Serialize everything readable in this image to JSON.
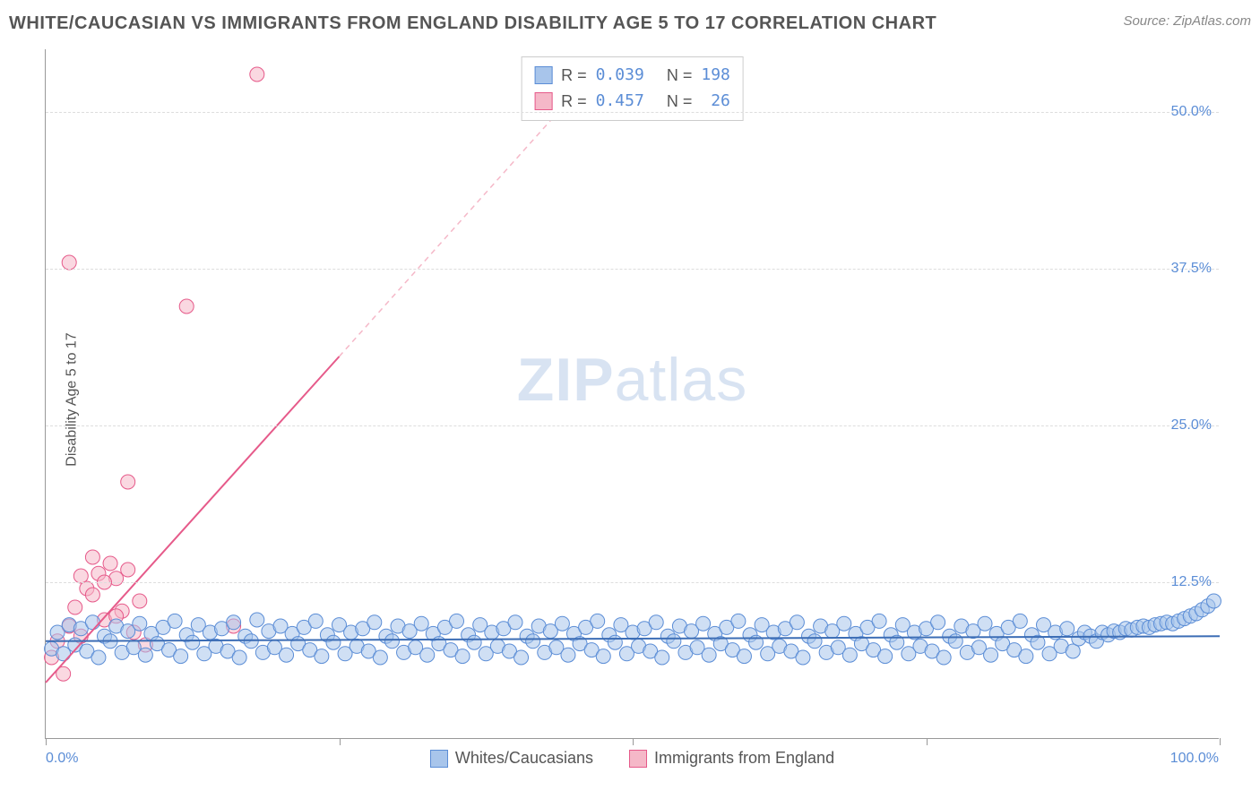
{
  "title": "WHITE/CAUCASIAN VS IMMIGRANTS FROM ENGLAND DISABILITY AGE 5 TO 17 CORRELATION CHART",
  "source": "Source: ZipAtlas.com",
  "ylabel": "Disability Age 5 to 17",
  "watermark": {
    "bold": "ZIP",
    "light": "atlas"
  },
  "chart": {
    "type": "scatter",
    "xlim": [
      0,
      100
    ],
    "ylim": [
      0,
      55
    ],
    "ytick_positions": [
      12.5,
      25.0,
      37.5,
      50.0
    ],
    "ytick_labels": [
      "12.5%",
      "25.0%",
      "37.5%",
      "50.0%"
    ],
    "xtick_positions": [
      0,
      25,
      50,
      75,
      100
    ],
    "xtick_labels_shown": {
      "0": "0.0%",
      "100": "100.0%"
    },
    "background_color": "#ffffff",
    "grid_color": "#dddddd",
    "axis_color": "#999999",
    "tick_label_color": "#5b8dd6",
    "marker_radius": 8,
    "marker_stroke_width": 1,
    "series": [
      {
        "name": "Whites/Caucasians",
        "fill": "#a8c5eb",
        "stroke": "#5b8dd6",
        "fill_opacity": 0.55,
        "R": "0.039",
        "N": "198",
        "trend": {
          "x1": 0,
          "y1": 7.8,
          "x2": 100,
          "y2": 8.2,
          "color": "#3c6db5",
          "width": 2,
          "dash": "none"
        },
        "points": [
          [
            0.5,
            7.2
          ],
          [
            1,
            8.5
          ],
          [
            1.5,
            6.8
          ],
          [
            2,
            9.1
          ],
          [
            2.5,
            7.5
          ],
          [
            3,
            8.8
          ],
          [
            3.5,
            7.0
          ],
          [
            4,
            9.3
          ],
          [
            4.5,
            6.5
          ],
          [
            5,
            8.2
          ],
          [
            5.5,
            7.8
          ],
          [
            6,
            9.0
          ],
          [
            6.5,
            6.9
          ],
          [
            7,
            8.6
          ],
          [
            7.5,
            7.3
          ],
          [
            8,
            9.2
          ],
          [
            8.5,
            6.7
          ],
          [
            9,
            8.4
          ],
          [
            9.5,
            7.6
          ],
          [
            10,
            8.9
          ],
          [
            10.5,
            7.1
          ],
          [
            11,
            9.4
          ],
          [
            11.5,
            6.6
          ],
          [
            12,
            8.3
          ],
          [
            12.5,
            7.7
          ],
          [
            13,
            9.1
          ],
          [
            13.5,
            6.8
          ],
          [
            14,
            8.5
          ],
          [
            14.5,
            7.4
          ],
          [
            15,
            8.8
          ],
          [
            15.5,
            7.0
          ],
          [
            16,
            9.3
          ],
          [
            16.5,
            6.5
          ],
          [
            17,
            8.2
          ],
          [
            17.5,
            7.8
          ],
          [
            18,
            9.5
          ],
          [
            18.5,
            6.9
          ],
          [
            19,
            8.6
          ],
          [
            19.5,
            7.3
          ],
          [
            20,
            9.0
          ],
          [
            20.5,
            6.7
          ],
          [
            21,
            8.4
          ],
          [
            21.5,
            7.6
          ],
          [
            22,
            8.9
          ],
          [
            22.5,
            7.1
          ],
          [
            23,
            9.4
          ],
          [
            23.5,
            6.6
          ],
          [
            24,
            8.3
          ],
          [
            24.5,
            7.7
          ],
          [
            25,
            9.1
          ],
          [
            25.5,
            6.8
          ],
          [
            26,
            8.5
          ],
          [
            26.5,
            7.4
          ],
          [
            27,
            8.8
          ],
          [
            27.5,
            7.0
          ],
          [
            28,
            9.3
          ],
          [
            28.5,
            6.5
          ],
          [
            29,
            8.2
          ],
          [
            29.5,
            7.8
          ],
          [
            30,
            9.0
          ],
          [
            30.5,
            6.9
          ],
          [
            31,
            8.6
          ],
          [
            31.5,
            7.3
          ],
          [
            32,
            9.2
          ],
          [
            32.5,
            6.7
          ],
          [
            33,
            8.4
          ],
          [
            33.5,
            7.6
          ],
          [
            34,
            8.9
          ],
          [
            34.5,
            7.1
          ],
          [
            35,
            9.4
          ],
          [
            35.5,
            6.6
          ],
          [
            36,
            8.3
          ],
          [
            36.5,
            7.7
          ],
          [
            37,
            9.1
          ],
          [
            37.5,
            6.8
          ],
          [
            38,
            8.5
          ],
          [
            38.5,
            7.4
          ],
          [
            39,
            8.8
          ],
          [
            39.5,
            7.0
          ],
          [
            40,
            9.3
          ],
          [
            40.5,
            6.5
          ],
          [
            41,
            8.2
          ],
          [
            41.5,
            7.8
          ],
          [
            42,
            9.0
          ],
          [
            42.5,
            6.9
          ],
          [
            43,
            8.6
          ],
          [
            43.5,
            7.3
          ],
          [
            44,
            9.2
          ],
          [
            44.5,
            6.7
          ],
          [
            45,
            8.4
          ],
          [
            45.5,
            7.6
          ],
          [
            46,
            8.9
          ],
          [
            46.5,
            7.1
          ],
          [
            47,
            9.4
          ],
          [
            47.5,
            6.6
          ],
          [
            48,
            8.3
          ],
          [
            48.5,
            7.7
          ],
          [
            49,
            9.1
          ],
          [
            49.5,
            6.8
          ],
          [
            50,
            8.5
          ],
          [
            50.5,
            7.4
          ],
          [
            51,
            8.8
          ],
          [
            51.5,
            7.0
          ],
          [
            52,
            9.3
          ],
          [
            52.5,
            6.5
          ],
          [
            53,
            8.2
          ],
          [
            53.5,
            7.8
          ],
          [
            54,
            9.0
          ],
          [
            54.5,
            6.9
          ],
          [
            55,
            8.6
          ],
          [
            55.5,
            7.3
          ],
          [
            56,
            9.2
          ],
          [
            56.5,
            6.7
          ],
          [
            57,
            8.4
          ],
          [
            57.5,
            7.6
          ],
          [
            58,
            8.9
          ],
          [
            58.5,
            7.1
          ],
          [
            59,
            9.4
          ],
          [
            59.5,
            6.6
          ],
          [
            60,
            8.3
          ],
          [
            60.5,
            7.7
          ],
          [
            61,
            9.1
          ],
          [
            61.5,
            6.8
          ],
          [
            62,
            8.5
          ],
          [
            62.5,
            7.4
          ],
          [
            63,
            8.8
          ],
          [
            63.5,
            7.0
          ],
          [
            64,
            9.3
          ],
          [
            64.5,
            6.5
          ],
          [
            65,
            8.2
          ],
          [
            65.5,
            7.8
          ],
          [
            66,
            9.0
          ],
          [
            66.5,
            6.9
          ],
          [
            67,
            8.6
          ],
          [
            67.5,
            7.3
          ],
          [
            68,
            9.2
          ],
          [
            68.5,
            6.7
          ],
          [
            69,
            8.4
          ],
          [
            69.5,
            7.6
          ],
          [
            70,
            8.9
          ],
          [
            70.5,
            7.1
          ],
          [
            71,
            9.4
          ],
          [
            71.5,
            6.6
          ],
          [
            72,
            8.3
          ],
          [
            72.5,
            7.7
          ],
          [
            73,
            9.1
          ],
          [
            73.5,
            6.8
          ],
          [
            74,
            8.5
          ],
          [
            74.5,
            7.4
          ],
          [
            75,
            8.8
          ],
          [
            75.5,
            7.0
          ],
          [
            76,
            9.3
          ],
          [
            76.5,
            6.5
          ],
          [
            77,
            8.2
          ],
          [
            77.5,
            7.8
          ],
          [
            78,
            9.0
          ],
          [
            78.5,
            6.9
          ],
          [
            79,
            8.6
          ],
          [
            79.5,
            7.3
          ],
          [
            80,
            9.2
          ],
          [
            80.5,
            6.7
          ],
          [
            81,
            8.4
          ],
          [
            81.5,
            7.6
          ],
          [
            82,
            8.9
          ],
          [
            82.5,
            7.1
          ],
          [
            83,
            9.4
          ],
          [
            83.5,
            6.6
          ],
          [
            84,
            8.3
          ],
          [
            84.5,
            7.7
          ],
          [
            85,
            9.1
          ],
          [
            85.5,
            6.8
          ],
          [
            86,
            8.5
          ],
          [
            86.5,
            7.4
          ],
          [
            87,
            8.8
          ],
          [
            87.5,
            7.0
          ],
          [
            88,
            8.0
          ],
          [
            88.5,
            8.5
          ],
          [
            89,
            8.2
          ],
          [
            89.5,
            7.8
          ],
          [
            90,
            8.5
          ],
          [
            90.5,
            8.3
          ],
          [
            91,
            8.6
          ],
          [
            91.5,
            8.5
          ],
          [
            92,
            8.8
          ],
          [
            92.5,
            8.7
          ],
          [
            93,
            8.9
          ],
          [
            93.5,
            9.0
          ],
          [
            94,
            8.9
          ],
          [
            94.5,
            9.1
          ],
          [
            95,
            9.2
          ],
          [
            95.5,
            9.3
          ],
          [
            96,
            9.2
          ],
          [
            96.5,
            9.4
          ],
          [
            97,
            9.6
          ],
          [
            97.5,
            9.8
          ],
          [
            98,
            10.0
          ],
          [
            98.5,
            10.3
          ],
          [
            99,
            10.6
          ],
          [
            99.5,
            11.0
          ]
        ]
      },
      {
        "name": "Immigrants from England",
        "fill": "#f5b8c8",
        "stroke": "#e65a8a",
        "fill_opacity": 0.55,
        "R": "0.457",
        "N": "26",
        "trend": {
          "x1": 0,
          "y1": 4.5,
          "x2": 25,
          "y2": 30.5,
          "color": "#e65a8a",
          "width": 2,
          "dash": "none"
        },
        "trend_ext": {
          "x1": 25,
          "y1": 30.5,
          "x2": 47,
          "y2": 53.5,
          "color": "#f5b8c8",
          "width": 1.5,
          "dash": "6 5"
        },
        "points": [
          [
            0.5,
            6.5
          ],
          [
            1,
            7.8
          ],
          [
            1.5,
            5.2
          ],
          [
            2,
            9.0
          ],
          [
            2.5,
            10.5
          ],
          [
            3,
            8.2
          ],
          [
            3.5,
            12.0
          ],
          [
            4,
            11.5
          ],
          [
            4.5,
            13.2
          ],
          [
            5,
            9.5
          ],
          [
            5.5,
            14.0
          ],
          [
            6,
            12.8
          ],
          [
            6.5,
            10.2
          ],
          [
            7,
            13.5
          ],
          [
            2,
            38.0
          ],
          [
            7.5,
            8.5
          ],
          [
            8,
            11.0
          ],
          [
            4,
            14.5
          ],
          [
            3,
            13.0
          ],
          [
            5,
            12.5
          ],
          [
            6,
            9.8
          ],
          [
            12,
            34.5
          ],
          [
            18,
            53.0
          ],
          [
            7,
            20.5
          ],
          [
            16,
            9.0
          ],
          [
            8.5,
            7.5
          ]
        ]
      }
    ]
  },
  "stats_labels": {
    "R": "R =",
    "N": "N ="
  },
  "legend": {
    "items": [
      {
        "label": "Whites/Caucasians",
        "fill": "#a8c5eb",
        "stroke": "#5b8dd6"
      },
      {
        "label": "Immigrants from England",
        "fill": "#f5b8c8",
        "stroke": "#e65a8a"
      }
    ]
  }
}
